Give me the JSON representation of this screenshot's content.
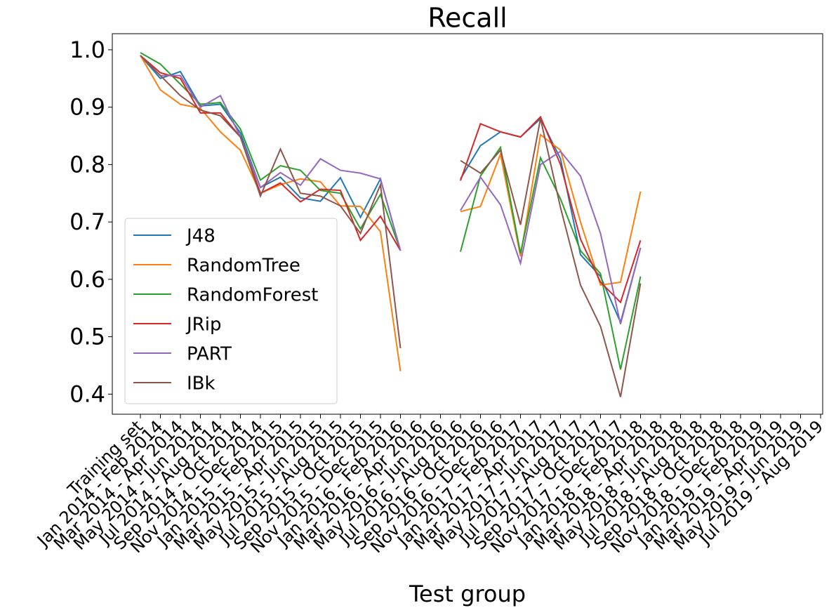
{
  "chart_data": {
    "type": "line",
    "title": "Recall",
    "x_label": "Test group",
    "categories": [
      "Training set",
      "Jan 2014 - Feb 2014",
      "Mar 2014 - Apr 2014",
      "May 2014 - Jun 2014",
      "Jul 2014 - Aug 2014",
      "Sep 2014 - Oct 2014",
      "Nov 2014 - Dec 2014",
      "Jan 2015 - Feb 2015",
      "Mar 2015 - Apr 2015",
      "May 2015 - Jun 2015",
      "Jul 2015 - Aug 2015",
      "Sep 2015 - Oct 2015",
      "Nov 2015 - Dec 2015",
      "Jan 2016 - Feb 2016",
      "Mar 2016 - Apr 2016",
      "May 2016 - Jun 2016",
      "Jul 2016 - Aug 2016",
      "Sep 2016 - Oct 2016",
      "Nov 2016 - Dec 2016",
      "Jan 2017 - Feb 2017",
      "Mar 2017 - Apr 2017",
      "May 2017 - Jun 2017",
      "Jul 2017 - Aug 2017",
      "Sep 2017 - Oct 2017",
      "Nov 2017 - Dec 2017",
      "Jan 2018 - Feb 2018",
      "Mar 2018 - Apr 2018",
      "May 2018 - Jun 2018",
      "Jul 2018 - Aug 2018",
      "Sep 2018 - Oct 2018",
      "Nov 2018 - Dec 2018",
      "Jan 2019 - Feb 2019",
      "Mar 2019 - Apr 2019",
      "May 2019 - Jun 2019",
      "Jul 2019 - Aug 2019"
    ],
    "series": [
      {
        "name": "J48",
        "color": "#1f77b4",
        "values": [
          0.99,
          0.95,
          0.962,
          0.902,
          0.905,
          0.855,
          0.76,
          0.778,
          0.742,
          0.736,
          0.777,
          0.708,
          0.775,
          0.65,
          null,
          null,
          0.775,
          0.833,
          0.857,
          0.848,
          0.88,
          0.81,
          0.643,
          0.605,
          0.525,
          0.655,
          null,
          null,
          null,
          null,
          null,
          null,
          null,
          null,
          null
        ]
      },
      {
        "name": "RandomTree",
        "color": "#ff7f0e",
        "values": [
          0.99,
          0.93,
          0.905,
          0.898,
          0.857,
          0.825,
          0.75,
          0.765,
          0.775,
          0.77,
          0.728,
          0.727,
          0.683,
          0.44,
          null,
          null,
          0.718,
          0.727,
          0.818,
          0.64,
          0.852,
          0.825,
          0.7,
          0.59,
          0.595,
          0.753,
          null,
          null,
          null,
          null,
          null,
          null,
          null,
          null,
          null
        ]
      },
      {
        "name": "RandomForest",
        "color": "#2ca02c",
        "values": [
          0.995,
          0.975,
          0.94,
          0.905,
          0.908,
          0.862,
          0.773,
          0.798,
          0.79,
          0.755,
          0.75,
          0.688,
          0.748,
          0.65,
          null,
          null,
          0.648,
          0.78,
          0.83,
          0.645,
          0.812,
          0.74,
          0.65,
          0.61,
          0.443,
          0.605,
          null,
          null,
          null,
          null,
          null,
          null,
          null,
          null,
          null
        ]
      },
      {
        "name": "JRip",
        "color": "#d62728",
        "values": [
          0.99,
          0.96,
          0.95,
          0.89,
          0.89,
          0.848,
          0.75,
          0.768,
          0.735,
          0.757,
          0.755,
          0.668,
          0.71,
          0.65,
          null,
          null,
          0.772,
          0.871,
          0.857,
          0.848,
          0.883,
          0.8,
          0.67,
          0.595,
          0.56,
          0.668,
          null,
          null,
          null,
          null,
          null,
          null,
          null,
          null,
          null
        ]
      },
      {
        "name": "PART",
        "color": "#9467bd",
        "values": [
          0.99,
          0.955,
          0.955,
          0.9,
          0.92,
          0.848,
          0.76,
          0.786,
          0.764,
          0.81,
          0.79,
          0.785,
          0.775,
          0.65,
          null,
          null,
          0.72,
          0.778,
          0.73,
          0.628,
          0.8,
          0.823,
          0.78,
          0.68,
          0.522,
          0.655,
          null,
          null,
          null,
          null,
          null,
          null,
          null,
          null,
          null
        ]
      },
      {
        "name": "IBk",
        "color": "#8c564b",
        "values": [
          0.99,
          0.955,
          0.92,
          0.895,
          0.885,
          0.848,
          0.745,
          0.827,
          0.75,
          0.745,
          0.728,
          0.68,
          0.765,
          0.48,
          null,
          null,
          0.807,
          0.785,
          0.825,
          0.695,
          0.88,
          0.725,
          0.59,
          0.518,
          0.395,
          0.593,
          null,
          null,
          null,
          null,
          null,
          null,
          null,
          null,
          null
        ]
      }
    ],
    "ylim": [
      0.365,
      1.028
    ],
    "yticks": [
      0.4,
      0.5,
      0.6,
      0.7,
      0.8,
      0.9,
      {
        "value": 1,
        "label": "1.0"
      }
    ],
    "legend": "lower left"
  }
}
